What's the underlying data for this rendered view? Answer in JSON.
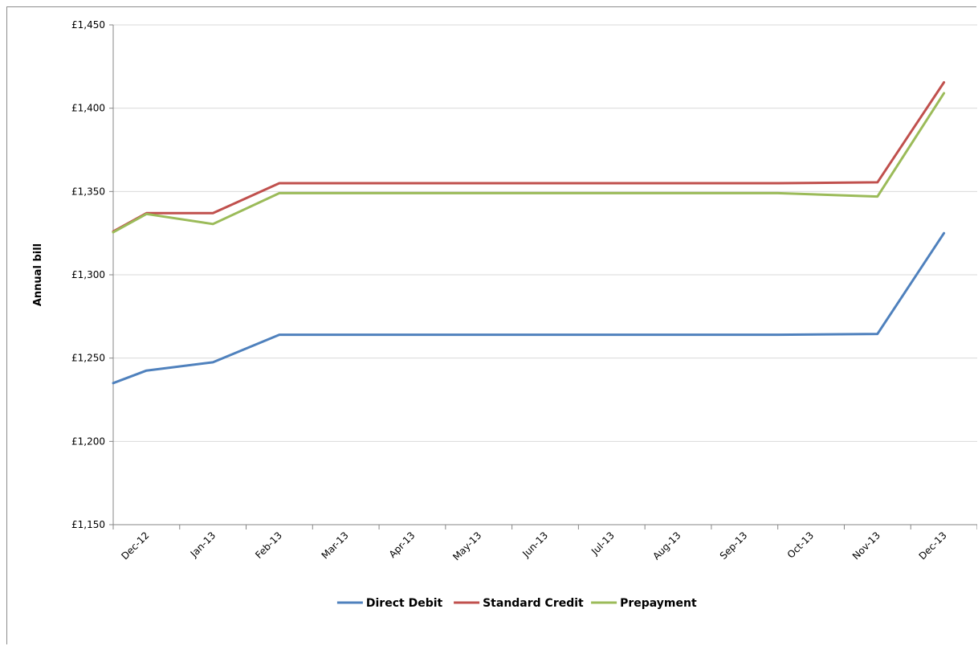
{
  "chart_data": {
    "type": "line",
    "title": "",
    "xlabel": "",
    "ylabel": "Annual bill",
    "ylim": [
      1150,
      1450
    ],
    "y_ticks": [
      1150,
      1200,
      1250,
      1300,
      1350,
      1400,
      1450
    ],
    "y_tick_labels": [
      "£1,150",
      "£1,200",
      "£1,250",
      "£1,300",
      "£1,350",
      "£1,400",
      "£1,450"
    ],
    "x_categories": [
      "Dec-12",
      "Jan-13",
      "Feb-13",
      "Mar-13",
      "Apr-13",
      "May-13",
      "Jun-13",
      "Jul-13",
      "Aug-13",
      "Sep-13",
      "Oct-13",
      "Nov-13",
      "Dec-13"
    ],
    "grid": true,
    "legend_position": "bottom",
    "series": [
      {
        "name": "Direct Debit",
        "color": "#4f81bd",
        "points": [
          [
            0,
            1235
          ],
          [
            0.5,
            1242.5
          ],
          [
            1.5,
            1247.5
          ],
          [
            2.5,
            1264
          ],
          [
            10.0,
            1264
          ],
          [
            11.5,
            1264.5
          ],
          [
            12.5,
            1325
          ]
        ]
      },
      {
        "name": "Standard Credit",
        "color": "#c0504d",
        "points": [
          [
            0,
            1326
          ],
          [
            0.5,
            1337
          ],
          [
            1.5,
            1337
          ],
          [
            2.5,
            1355
          ],
          [
            10.0,
            1355
          ],
          [
            11.5,
            1355.5
          ],
          [
            12.5,
            1415.5
          ]
        ]
      },
      {
        "name": "Prepayment",
        "color": "#9bbb59",
        "points": [
          [
            0,
            1325.5
          ],
          [
            0.5,
            1336.5
          ],
          [
            1.5,
            1330.5
          ],
          [
            2.5,
            1349
          ],
          [
            10.0,
            1349
          ],
          [
            11.5,
            1347
          ],
          [
            12.5,
            1409
          ]
        ]
      }
    ]
  }
}
